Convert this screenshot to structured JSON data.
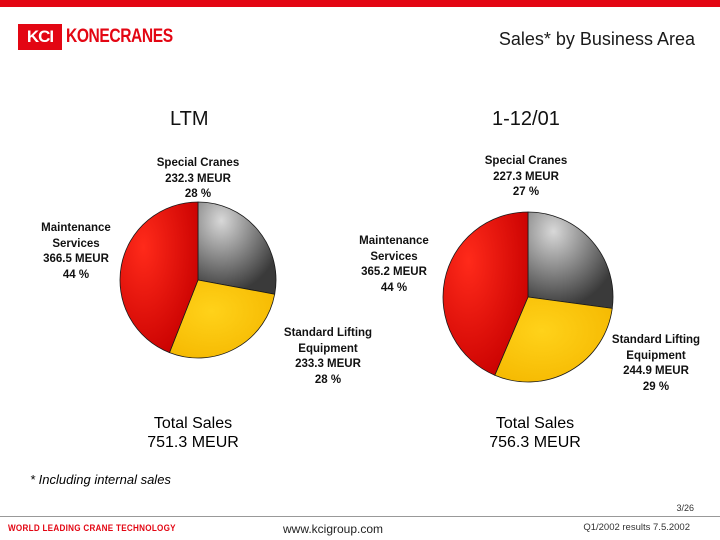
{
  "header": {
    "logo_mark": "KCI",
    "logo_text": "KONECRANES",
    "title": "Sales* by Business Area"
  },
  "colors": {
    "brand_red": "#e30613",
    "special_cranes": "#8a8a8a",
    "maintenance_services": "#e00000",
    "standard_lifting": "#ffcc00"
  },
  "chart_data": [
    {
      "type": "pie",
      "title": "LTM",
      "total_line1": "Total Sales",
      "total_line2": "751.3 MEUR",
      "slices": [
        {
          "name": "Special Cranes",
          "value": 232.3,
          "value_text": "232.3 MEUR",
          "pct_text": "28 %"
        },
        {
          "name": "Standard Lifting Equipment",
          "name_line1": "Standard Lifting",
          "name_line2": "Equipment",
          "value": 233.3,
          "value_text": "233.3 MEUR",
          "pct_text": "28 %"
        },
        {
          "name": "Maintenance Services",
          "name_line1": "Maintenance",
          "name_line2": "Services",
          "value": 366.5,
          "value_text": "366.5 MEUR",
          "pct_text": "44 %"
        }
      ]
    },
    {
      "type": "pie",
      "title": "1-12/01",
      "total_line1": "Total Sales",
      "total_line2": "756.3 MEUR",
      "slices": [
        {
          "name": "Special Cranes",
          "value": 227.3,
          "value_text": "227.3 MEUR",
          "pct_text": "27 %"
        },
        {
          "name": "Standard Lifting Equipment",
          "name_line1": "Standard Lifting",
          "name_line2": "Equipment",
          "value": 244.9,
          "value_text": "244.9 MEUR",
          "pct_text": "29 %"
        },
        {
          "name": "Maintenance Services",
          "name_line1": "Maintenance",
          "name_line2": "Services",
          "value": 365.2,
          "value_text": "365.2 MEUR",
          "pct_text": "44 %"
        }
      ]
    }
  ],
  "footnote": "* Including internal sales",
  "footer": {
    "page": "3/26",
    "tagline": "WORLD LEADING CRANE TECHNOLOGY",
    "url": "www.kcigroup.com",
    "results": "Q1/2002 results 7.5.2002"
  }
}
